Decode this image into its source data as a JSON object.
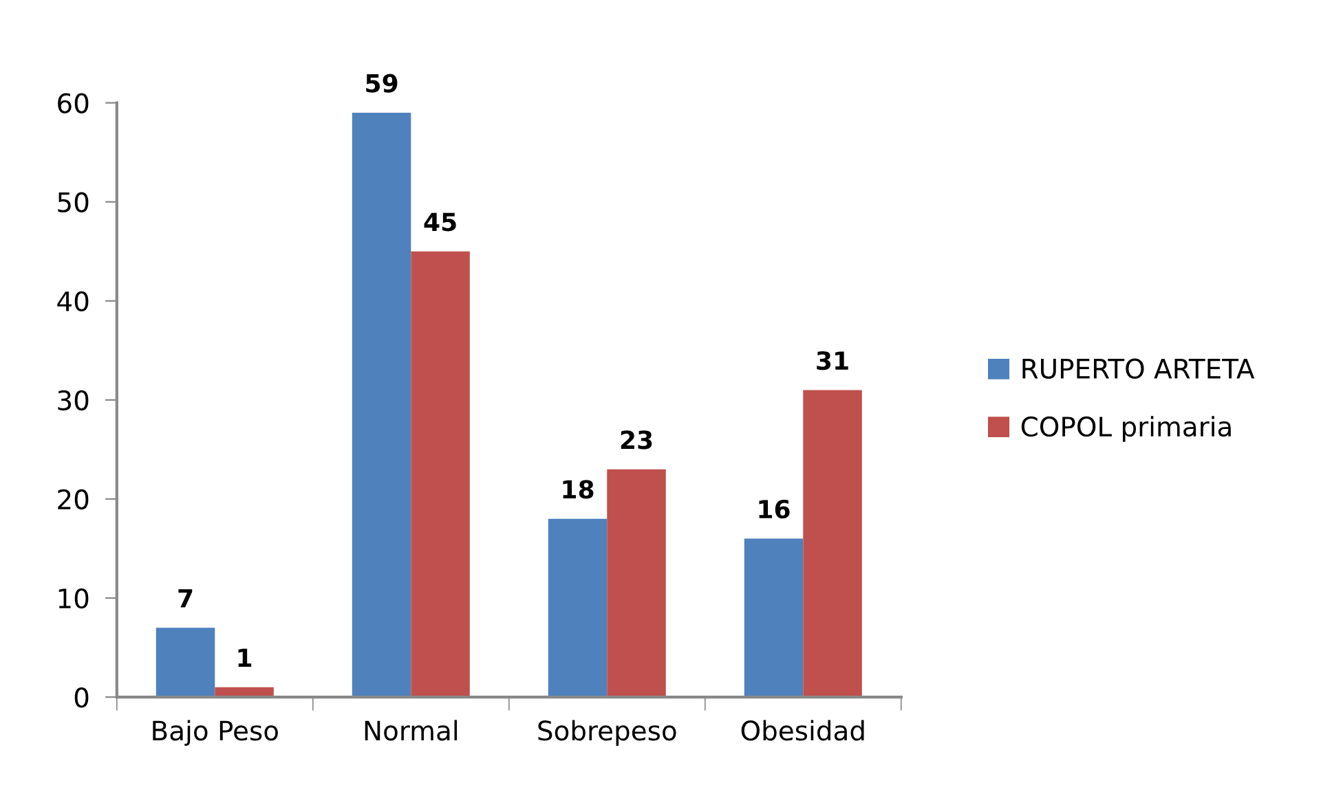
{
  "chart_data": {
    "type": "bar",
    "categories": [
      "Bajo Peso",
      "Normal",
      "Sobrepeso",
      "Obesidad"
    ],
    "series": [
      {
        "name": "RUPERTO ARTETA",
        "color": "#4f81bd",
        "values": [
          7,
          59,
          18,
          16
        ]
      },
      {
        "name": "COPOL primaria",
        "color": "#c0504d",
        "values": [
          1,
          45,
          23,
          31
        ]
      }
    ],
    "ylim": [
      0,
      60
    ],
    "yticks": [
      0,
      10,
      20,
      30,
      40,
      50,
      60
    ],
    "data_labels": true,
    "legend": "right"
  }
}
